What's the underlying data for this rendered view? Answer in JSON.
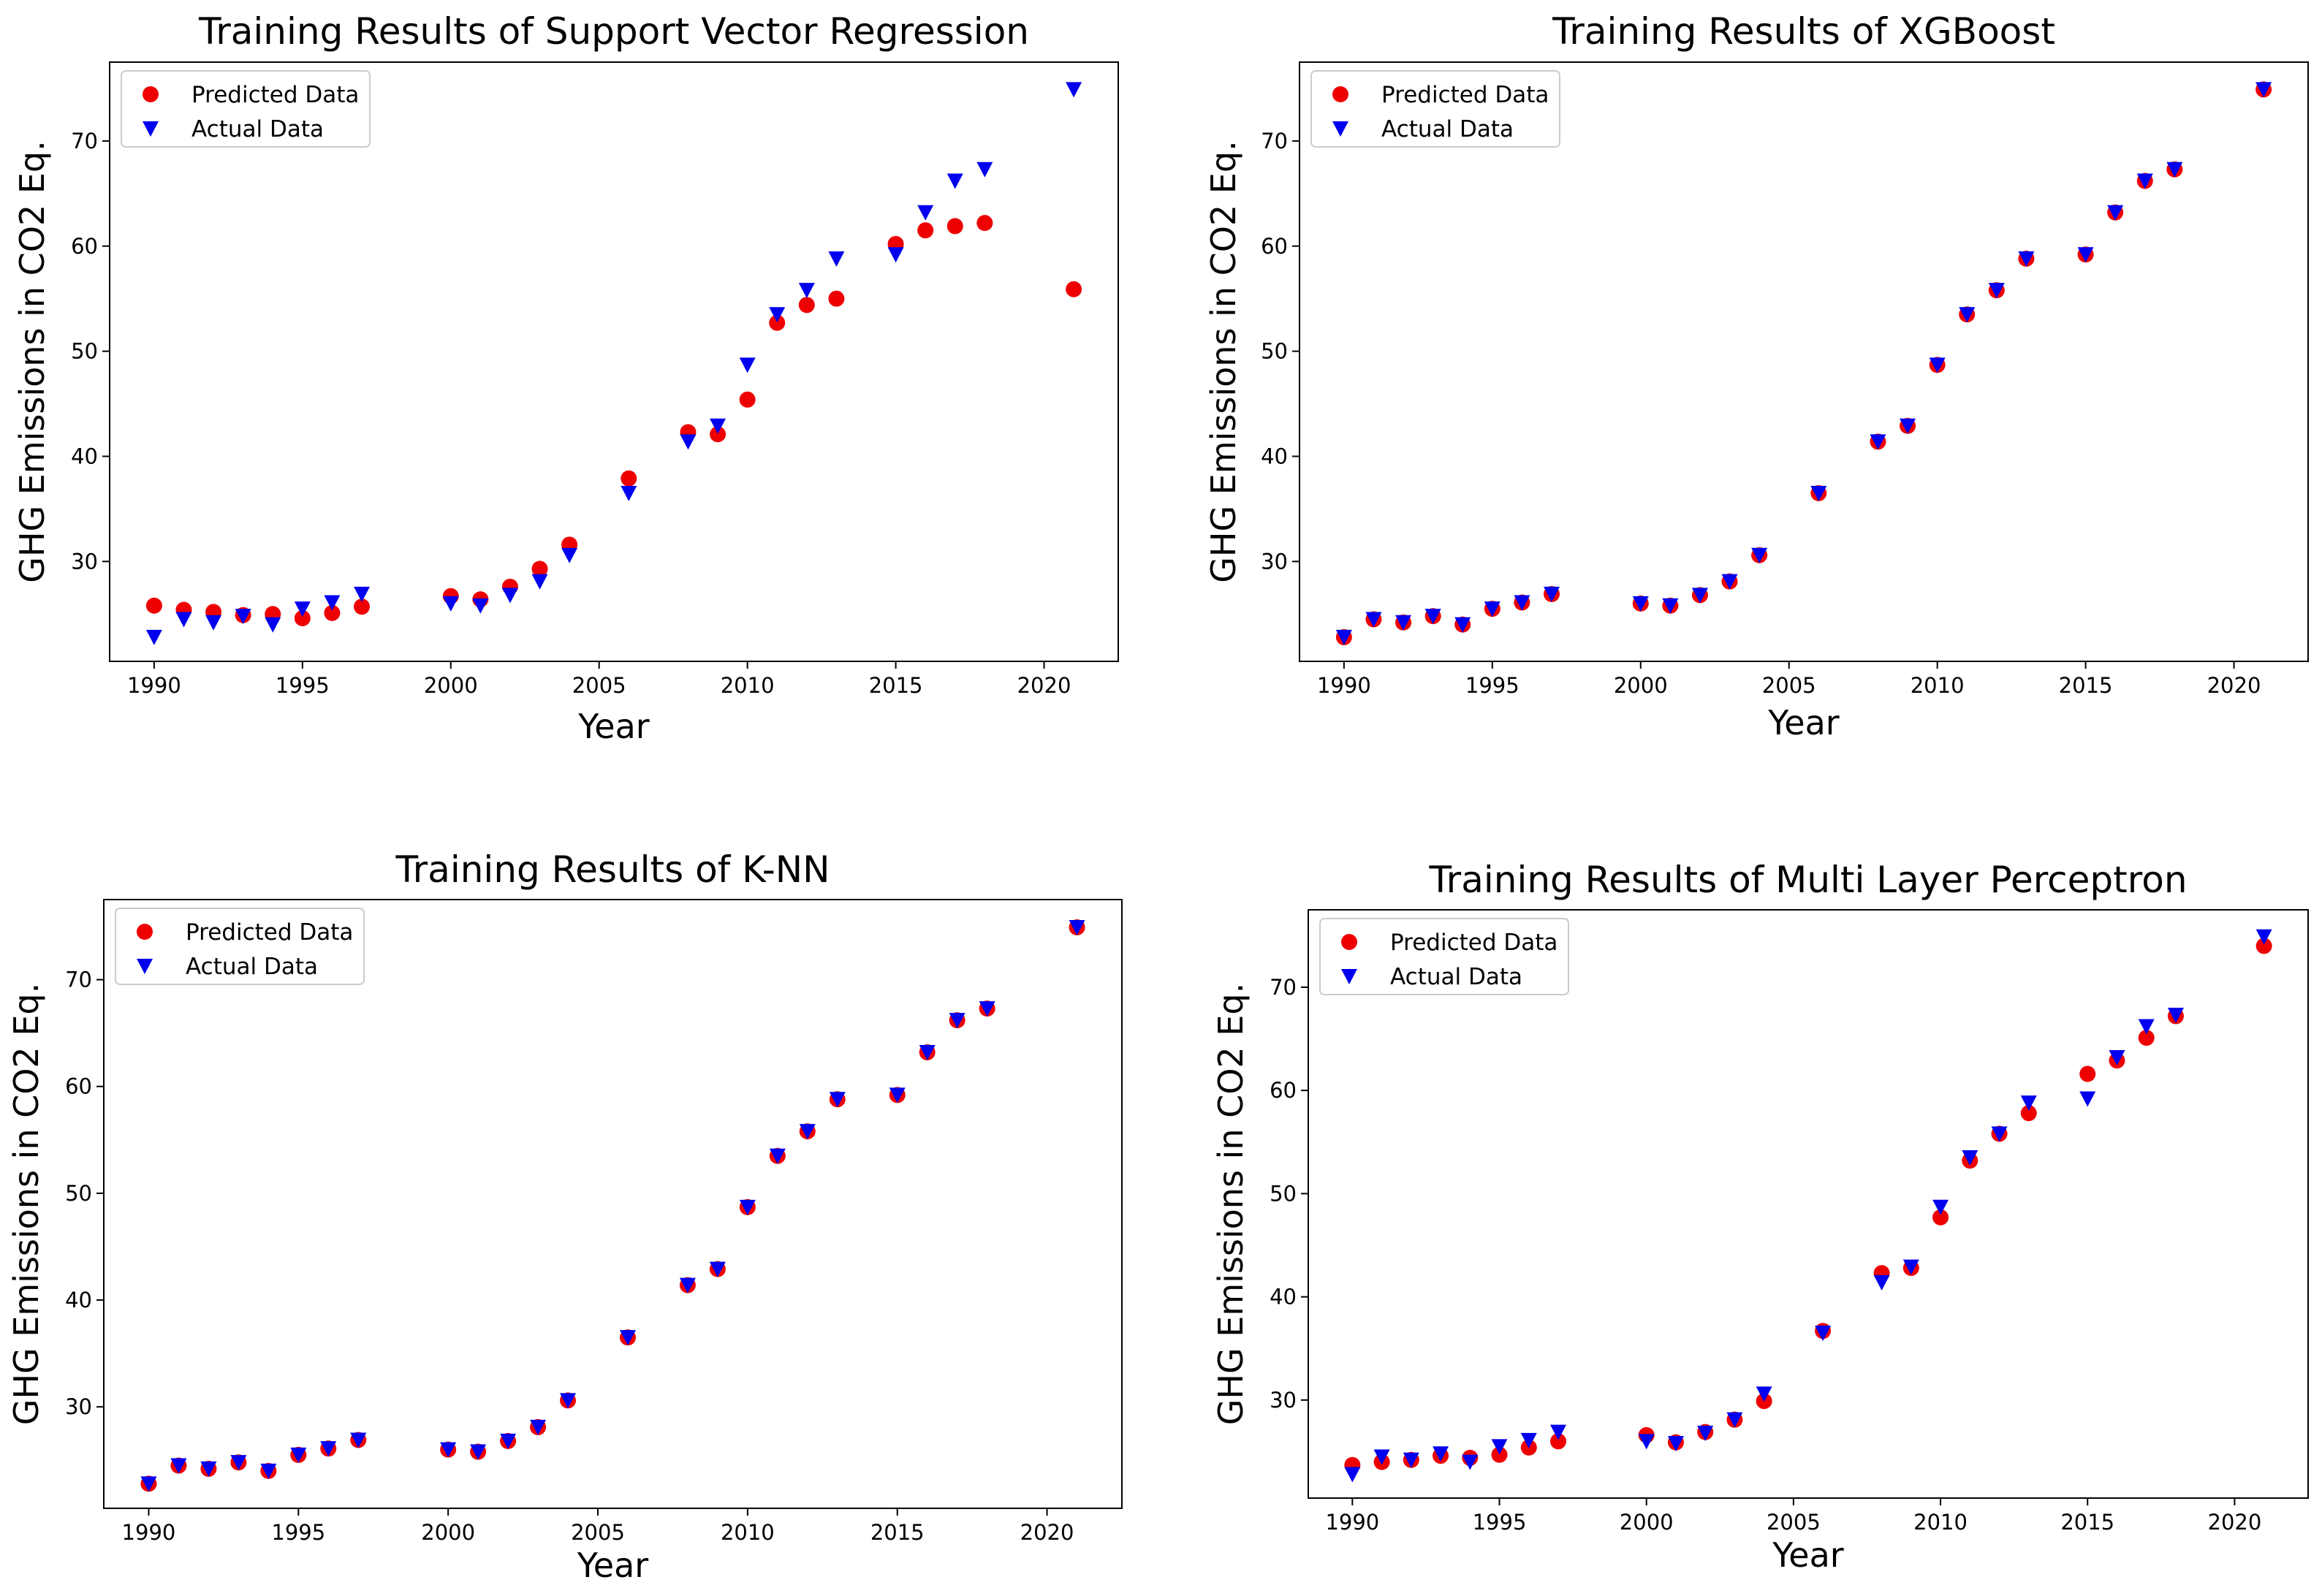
{
  "figure": {
    "layout": "2x2 grid of scatter plots"
  },
  "colors": {
    "predicted": "#ee0000",
    "actual": "#0000ee",
    "axes": "#000000",
    "legend_border": "#cccccc"
  },
  "chart_data": [
    {
      "type": "scatter",
      "title": "Training Results of Support Vector Regression",
      "xlabel": "Year",
      "ylabel": "GHG Emissions in CO2 Eq.",
      "xlim": [
        1988.5,
        2022.5
      ],
      "ylim": [
        20.5,
        77.5
      ],
      "xticks": [
        1990,
        1995,
        2000,
        2005,
        2010,
        2015,
        2020
      ],
      "yticks": [
        30,
        40,
        50,
        60,
        70
      ],
      "legend": {
        "position": "upper left",
        "entries": [
          "Predicted Data",
          "Actual Data"
        ]
      },
      "x": [
        1990,
        1991,
        1992,
        1993,
        1994,
        1995,
        1996,
        1997,
        2000,
        2001,
        2002,
        2003,
        2004,
        2006,
        2008,
        2009,
        2010,
        2011,
        2012,
        2013,
        2015,
        2016,
        2017,
        2018,
        2021
      ],
      "series": [
        {
          "name": "Predicted Data",
          "marker": "circle",
          "color": "#ee0000",
          "values": [
            25.8,
            25.4,
            25.2,
            24.9,
            25.0,
            24.6,
            25.1,
            25.7,
            26.7,
            26.4,
            27.6,
            29.3,
            31.6,
            37.9,
            42.3,
            42.1,
            45.4,
            52.7,
            54.4,
            55.0,
            60.2,
            61.5,
            61.9,
            62.2,
            55.9
          ]
        },
        {
          "name": "Actual Data",
          "marker": "triangle-down",
          "color": "#0000ee",
          "values": [
            22.8,
            24.5,
            24.2,
            24.8,
            24.0,
            25.5,
            26.1,
            26.9,
            26.0,
            25.8,
            26.8,
            28.1,
            30.6,
            36.5,
            41.4,
            42.9,
            48.7,
            53.5,
            55.8,
            58.8,
            59.2,
            63.2,
            66.2,
            67.3,
            74.9
          ]
        }
      ]
    },
    {
      "type": "scatter",
      "title": "Training Results of XGBoost",
      "xlabel": "Year",
      "ylabel": "GHG Emissions in CO2 Eq.",
      "xlim": [
        1988.5,
        2022.5
      ],
      "ylim": [
        20.5,
        77.5
      ],
      "xticks": [
        1990,
        1995,
        2000,
        2005,
        2010,
        2015,
        2020
      ],
      "yticks": [
        30,
        40,
        50,
        60,
        70
      ],
      "legend": {
        "position": "upper left",
        "entries": [
          "Predicted Data",
          "Actual Data"
        ]
      },
      "x": [
        1990,
        1991,
        1992,
        1993,
        1994,
        1995,
        1996,
        1997,
        2000,
        2001,
        2002,
        2003,
        2004,
        2006,
        2008,
        2009,
        2010,
        2011,
        2012,
        2013,
        2015,
        2016,
        2017,
        2018,
        2021
      ],
      "series": [
        {
          "name": "Predicted Data",
          "marker": "circle",
          "color": "#ee0000",
          "values": [
            22.8,
            24.5,
            24.2,
            24.8,
            24.0,
            25.5,
            26.1,
            26.9,
            26.0,
            25.8,
            26.8,
            28.1,
            30.6,
            36.5,
            41.4,
            42.9,
            48.7,
            53.5,
            55.8,
            58.8,
            59.2,
            63.2,
            66.2,
            67.3,
            74.9
          ]
        },
        {
          "name": "Actual Data",
          "marker": "triangle-down",
          "color": "#0000ee",
          "values": [
            22.8,
            24.5,
            24.2,
            24.8,
            24.0,
            25.5,
            26.1,
            26.9,
            26.0,
            25.8,
            26.8,
            28.1,
            30.6,
            36.5,
            41.4,
            42.9,
            48.7,
            53.5,
            55.8,
            58.8,
            59.2,
            63.2,
            66.2,
            67.3,
            74.9
          ]
        }
      ]
    },
    {
      "type": "scatter",
      "title": "Training Results of K-NN",
      "xlabel": "Year",
      "ylabel": "GHG Emissions in CO2 Eq.",
      "xlim": [
        1988.5,
        2022.5
      ],
      "ylim": [
        20.5,
        77.5
      ],
      "xticks": [
        1990,
        1995,
        2000,
        2005,
        2010,
        2015,
        2020
      ],
      "yticks": [
        30,
        40,
        50,
        60,
        70
      ],
      "legend": {
        "position": "upper left",
        "entries": [
          "Predicted Data",
          "Actual Data"
        ]
      },
      "x": [
        1990,
        1991,
        1992,
        1993,
        1994,
        1995,
        1996,
        1997,
        2000,
        2001,
        2002,
        2003,
        2004,
        2006,
        2008,
        2009,
        2010,
        2011,
        2012,
        2013,
        2015,
        2016,
        2017,
        2018,
        2021
      ],
      "series": [
        {
          "name": "Predicted Data",
          "marker": "circle",
          "color": "#ee0000",
          "values": [
            22.8,
            24.5,
            24.2,
            24.8,
            24.0,
            25.5,
            26.1,
            26.9,
            26.0,
            25.8,
            26.8,
            28.1,
            30.6,
            36.5,
            41.4,
            42.9,
            48.7,
            53.5,
            55.8,
            58.8,
            59.2,
            63.2,
            66.2,
            67.3,
            74.9
          ]
        },
        {
          "name": "Actual Data",
          "marker": "triangle-down",
          "color": "#0000ee",
          "values": [
            22.8,
            24.5,
            24.2,
            24.8,
            24.0,
            25.5,
            26.1,
            26.9,
            26.0,
            25.8,
            26.8,
            28.1,
            30.6,
            36.5,
            41.4,
            42.9,
            48.7,
            53.5,
            55.8,
            58.8,
            59.2,
            63.2,
            66.2,
            67.3,
            74.9
          ]
        }
      ]
    },
    {
      "type": "scatter",
      "title": "Training Results of Multi Layer Perceptron",
      "xlabel": "Year",
      "ylabel": "GHG Emissions in CO2 Eq.",
      "xlim": [
        1988.5,
        2022.5
      ],
      "ylim": [
        20.5,
        77.5
      ],
      "xticks": [
        1990,
        1995,
        2000,
        2005,
        2010,
        2015,
        2020
      ],
      "yticks": [
        30,
        40,
        50,
        60,
        70
      ],
      "legend": {
        "position": "upper left",
        "entries": [
          "Predicted Data",
          "Actual Data"
        ]
      },
      "x": [
        1990,
        1991,
        1992,
        1993,
        1994,
        1995,
        1996,
        1997,
        2000,
        2001,
        2002,
        2003,
        2004,
        2006,
        2008,
        2009,
        2010,
        2011,
        2012,
        2013,
        2015,
        2016,
        2017,
        2018,
        2021
      ],
      "series": [
        {
          "name": "Predicted Data",
          "marker": "circle",
          "color": "#ee0000",
          "values": [
            23.7,
            24.0,
            24.2,
            24.6,
            24.4,
            24.7,
            25.4,
            26.0,
            26.6,
            25.9,
            26.9,
            28.1,
            29.9,
            36.7,
            42.3,
            42.8,
            47.7,
            53.2,
            55.8,
            57.8,
            61.6,
            62.9,
            65.1,
            67.2,
            74.0
          ]
        },
        {
          "name": "Actual Data",
          "marker": "triangle-down",
          "color": "#0000ee",
          "values": [
            22.8,
            24.5,
            24.2,
            24.8,
            24.0,
            25.5,
            26.1,
            26.9,
            26.0,
            25.8,
            26.8,
            28.1,
            30.6,
            36.5,
            41.4,
            42.9,
            48.7,
            53.5,
            55.8,
            58.8,
            59.2,
            63.2,
            66.2,
            67.3,
            74.9
          ]
        }
      ]
    }
  ]
}
